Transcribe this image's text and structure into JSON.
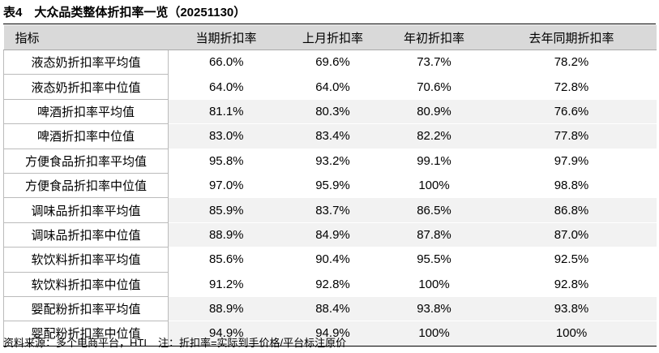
{
  "title": "表4　大众品类整体折扣率一览（20251130）",
  "table": {
    "header": [
      "指标",
      "当期折扣率",
      "上月折扣率",
      "年初折扣率",
      "去年同期折扣率"
    ],
    "rows": [
      [
        "液态奶折扣率平均值",
        "66.0%",
        "69.6%",
        "73.7%",
        "78.2%"
      ],
      [
        "液态奶折扣率中位值",
        "64.0%",
        "64.0%",
        "70.6%",
        "72.8%"
      ],
      [
        "啤酒折扣率平均值",
        "81.1%",
        "80.3%",
        "80.9%",
        "76.6%"
      ],
      [
        "啤酒折扣率中位值",
        "83.0%",
        "83.4%",
        "82.2%",
        "77.8%"
      ],
      [
        "方便食品折扣率平均值",
        "95.8%",
        "93.2%",
        "99.1%",
        "97.9%"
      ],
      [
        "方便食品折扣率中位值",
        "97.0%",
        "95.9%",
        "100%",
        "98.8%"
      ],
      [
        "调味品折扣率平均值",
        "85.9%",
        "83.7%",
        "86.5%",
        "86.8%"
      ],
      [
        "调味品折扣率中位值",
        "88.9%",
        "84.9%",
        "87.8%",
        "87.0%"
      ],
      [
        "软饮料折扣率平均值",
        "85.6%",
        "90.4%",
        "95.5%",
        "92.5%"
      ],
      [
        "软饮料折扣率中位值",
        "91.2%",
        "92.8%",
        "100%",
        "92.8%"
      ],
      [
        "婴配粉折扣率平均值",
        "88.9%",
        "88.4%",
        "93.8%",
        "93.8%"
      ],
      [
        "婴配粉折扣率中位值",
        "94.9%",
        "94.9%",
        "100%",
        "100%"
      ]
    ]
  },
  "footer": {
    "source": "资料来源：多个电商平台，HTI",
    "note": "注：折扣率=实际到手价格/平台标注原价"
  }
}
